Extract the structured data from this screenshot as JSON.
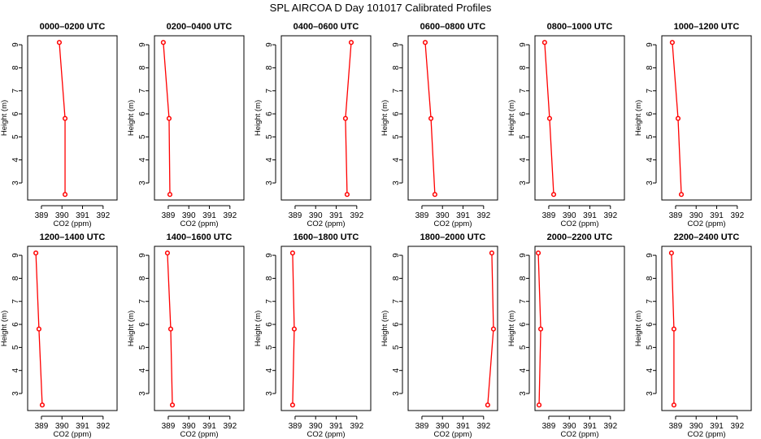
{
  "chart_data": {
    "type": "line",
    "title": "SPL AIRCOA D  Day 101017  Calibrated Profiles",
    "xlabel": "CO2 (ppm)",
    "ylabel": "Height (m)",
    "xlim": [
      388.33,
      392.68
    ],
    "ylim": [
      2.26,
      9.39
    ],
    "xticks": [
      389,
      390,
      391,
      392
    ],
    "yticks": [
      3,
      4,
      5,
      6,
      7,
      8,
      9
    ],
    "series_color": "#ff0000",
    "heights": [
      9.1,
      5.8,
      2.5
    ],
    "panels": [
      {
        "title": "0000–0200 UTC",
        "co2": [
          389.87,
          390.15,
          390.15
        ]
      },
      {
        "title": "0200–0400 UTC",
        "co2": [
          388.76,
          389.04,
          389.08
        ]
      },
      {
        "title": "0400–0600 UTC",
        "co2": [
          391.73,
          391.45,
          391.53
        ]
      },
      {
        "title": "0600–0800 UTC",
        "co2": [
          389.16,
          389.44,
          389.63
        ]
      },
      {
        "title": "0800–1000 UTC",
        "co2": [
          388.8,
          389.04,
          389.24
        ]
      },
      {
        "title": "1000–1200 UTC",
        "co2": [
          388.84,
          389.12,
          389.28
        ]
      },
      {
        "title": "1200–1400 UTC",
        "co2": [
          388.73,
          388.88,
          389.04
        ]
      },
      {
        "title": "1400–1600 UTC",
        "co2": [
          388.96,
          389.12,
          389.2
        ]
      },
      {
        "title": "1600–1800 UTC",
        "co2": [
          388.88,
          388.96,
          388.88
        ]
      },
      {
        "title": "1800–2000 UTC",
        "co2": [
          392.4,
          392.48,
          392.2
        ]
      },
      {
        "title": "2000–2200 UTC",
        "co2": [
          388.49,
          388.61,
          388.53
        ]
      },
      {
        "title": "2200–2400 UTC",
        "co2": [
          388.8,
          388.92,
          388.92
        ]
      }
    ]
  }
}
